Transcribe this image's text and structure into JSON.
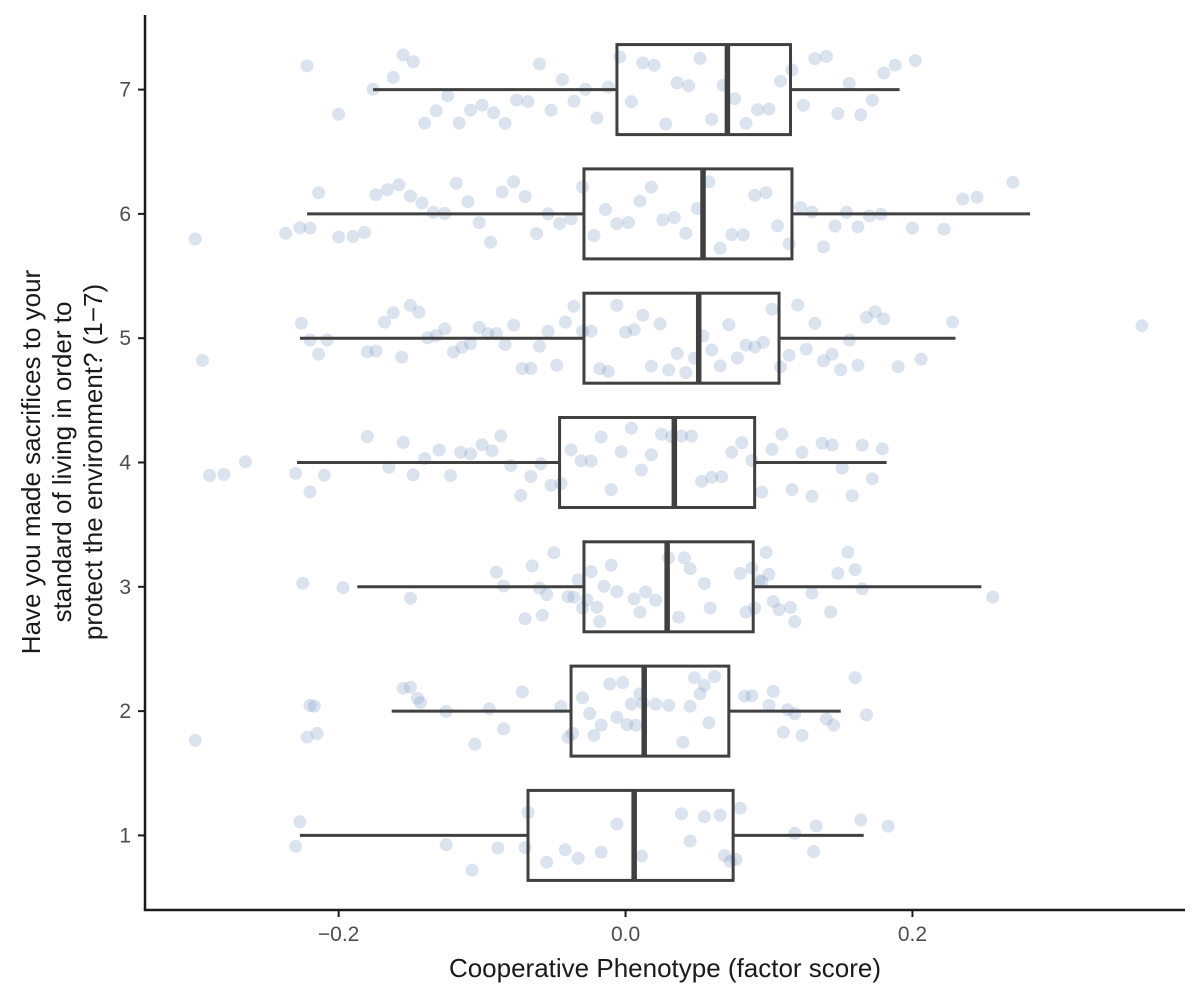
{
  "chart_data": {
    "type": "box",
    "xlabel": "Cooperative Phenotype (factor score)",
    "ylabel_lines": [
      "Have you made sacrifices to your",
      "standard of living in order to",
      "protect the environment? (1−7)"
    ],
    "x_ticks": [
      -0.2,
      0.0,
      0.2
    ],
    "x_tick_labels": [
      "−0.2",
      "0.0",
      "0.2"
    ],
    "y_categories": [
      "1",
      "2",
      "3",
      "4",
      "5",
      "6",
      "7"
    ],
    "xlim": [
      -0.335,
      0.39
    ],
    "ylim": [
      0.4,
      7.6
    ],
    "grid": false,
    "point_color": "#7f9cc7",
    "box_color": "#404040",
    "boxes": [
      {
        "category": "1",
        "whisker_low": -0.227,
        "q1": -0.068,
        "median": 0.006,
        "q3": 0.075,
        "whisker_high": 0.166
      },
      {
        "category": "2",
        "whisker_low": -0.163,
        "q1": -0.038,
        "median": 0.013,
        "q3": 0.072,
        "whisker_high": 0.15
      },
      {
        "category": "3",
        "whisker_low": -0.187,
        "q1": -0.029,
        "median": 0.029,
        "q3": 0.089,
        "whisker_high": 0.248
      },
      {
        "category": "4",
        "whisker_low": -0.229,
        "q1": -0.046,
        "median": 0.034,
        "q3": 0.09,
        "whisker_high": 0.182
      },
      {
        "category": "5",
        "whisker_low": -0.227,
        "q1": -0.029,
        "median": 0.051,
        "q3": 0.107,
        "whisker_high": 0.23
      },
      {
        "category": "6",
        "whisker_low": -0.222,
        "q1": -0.029,
        "median": 0.054,
        "q3": 0.116,
        "whisker_high": 0.282
      },
      {
        "category": "7",
        "whisker_low": -0.176,
        "q1": -0.006,
        "median": 0.071,
        "q3": 0.115,
        "whisker_high": 0.191
      }
    ],
    "points": [
      {
        "category": "1",
        "x": [
          -0.23,
          -0.227,
          -0.125,
          -0.107,
          -0.089,
          -0.07,
          -0.068,
          -0.055,
          -0.042,
          -0.033,
          -0.017,
          -0.006,
          0.011,
          0.039,
          0.045,
          0.055,
          0.066,
          0.069,
          0.073,
          0.077,
          0.08,
          0.118,
          0.131,
          0.133,
          0.164,
          0.183
        ]
      },
      {
        "category": "2",
        "x": [
          -0.3,
          -0.222,
          -0.22,
          -0.217,
          -0.215,
          -0.155,
          -0.15,
          -0.145,
          -0.143,
          -0.125,
          -0.105,
          -0.095,
          -0.085,
          -0.072,
          -0.045,
          -0.04,
          -0.037,
          -0.03,
          -0.025,
          -0.022,
          -0.017,
          -0.011,
          -0.006,
          -0.002,
          0.001,
          0.004,
          0.007,
          0.01,
          0.012,
          0.021,
          0.03,
          0.04,
          0.045,
          0.048,
          0.052,
          0.055,
          0.058,
          0.062,
          0.083,
          0.088,
          0.1,
          0.103,
          0.11,
          0.113,
          0.118,
          0.123,
          0.14,
          0.145,
          0.16,
          0.168
        ]
      },
      {
        "category": "3",
        "x": [
          -0.225,
          -0.197,
          -0.15,
          -0.09,
          -0.085,
          -0.07,
          -0.065,
          -0.06,
          -0.058,
          -0.055,
          -0.05,
          -0.04,
          -0.036,
          -0.033,
          -0.03,
          -0.027,
          -0.024,
          -0.02,
          -0.018,
          -0.015,
          -0.01,
          -0.006,
          0.006,
          0.01,
          0.014,
          0.021,
          0.03,
          0.037,
          0.041,
          0.045,
          0.055,
          0.059,
          0.08,
          0.084,
          0.088,
          0.09,
          0.093,
          0.095,
          0.098,
          0.1,
          0.103,
          0.107,
          0.115,
          0.118,
          0.13,
          0.143,
          0.148,
          0.155,
          0.16,
          0.165,
          0.256
        ]
      },
      {
        "category": "4",
        "x": [
          -0.29,
          -0.28,
          -0.265,
          -0.23,
          -0.22,
          -0.21,
          -0.18,
          -0.165,
          -0.155,
          -0.148,
          -0.14,
          -0.13,
          -0.122,
          -0.115,
          -0.108,
          -0.1,
          -0.093,
          -0.087,
          -0.08,
          -0.073,
          -0.066,
          -0.059,
          -0.052,
          -0.045,
          -0.038,
          -0.031,
          -0.024,
          -0.017,
          -0.01,
          -0.003,
          0.004,
          0.011,
          0.018,
          0.025,
          0.032,
          0.039,
          0.046,
          0.053,
          0.06,
          0.067,
          0.074,
          0.081,
          0.088,
          0.095,
          0.102,
          0.109,
          0.116,
          0.123,
          0.13,
          0.137,
          0.144,
          0.151,
          0.158,
          0.165,
          0.172,
          0.179
        ]
      },
      {
        "category": "5",
        "x": [
          -0.295,
          -0.226,
          -0.22,
          -0.214,
          -0.208,
          -0.18,
          -0.174,
          -0.168,
          -0.162,
          -0.156,
          -0.15,
          -0.144,
          -0.138,
          -0.132,
          -0.126,
          -0.12,
          -0.114,
          -0.108,
          -0.102,
          -0.096,
          -0.09,
          -0.084,
          -0.078,
          -0.072,
          -0.066,
          -0.06,
          -0.054,
          -0.048,
          -0.042,
          -0.036,
          -0.03,
          -0.024,
          -0.018,
          -0.012,
          -0.006,
          0.0,
          0.006,
          0.012,
          0.018,
          0.024,
          0.03,
          0.036,
          0.042,
          0.048,
          0.054,
          0.06,
          0.066,
          0.072,
          0.078,
          0.084,
          0.09,
          0.096,
          0.102,
          0.108,
          0.114,
          0.12,
          0.126,
          0.132,
          0.138,
          0.144,
          0.15,
          0.156,
          0.162,
          0.168,
          0.174,
          0.18,
          0.19,
          0.206,
          0.228,
          0.36
        ]
      },
      {
        "category": "6",
        "x": [
          -0.3,
          -0.237,
          -0.227,
          -0.22,
          -0.214,
          -0.2,
          -0.19,
          -0.182,
          -0.174,
          -0.166,
          -0.158,
          -0.15,
          -0.142,
          -0.134,
          -0.126,
          -0.118,
          -0.11,
          -0.102,
          -0.094,
          -0.086,
          -0.078,
          -0.07,
          -0.062,
          -0.054,
          -0.046,
          -0.038,
          -0.03,
          -0.022,
          -0.014,
          -0.006,
          0.002,
          0.01,
          0.018,
          0.026,
          0.034,
          0.042,
          0.05,
          0.058,
          0.066,
          0.074,
          0.082,
          0.09,
          0.098,
          0.106,
          0.114,
          0.122,
          0.13,
          0.138,
          0.146,
          0.154,
          0.162,
          0.17,
          0.178,
          0.2,
          0.222,
          0.235,
          0.245,
          0.27
        ]
      },
      {
        "category": "7",
        "x": [
          -0.222,
          -0.2,
          -0.176,
          -0.162,
          -0.155,
          -0.148,
          -0.14,
          -0.132,
          -0.124,
          -0.116,
          -0.108,
          -0.1,
          -0.092,
          -0.084,
          -0.076,
          -0.068,
          -0.06,
          -0.052,
          -0.044,
          -0.036,
          -0.028,
          -0.02,
          -0.012,
          -0.004,
          0.004,
          0.012,
          0.02,
          0.028,
          0.036,
          0.044,
          0.052,
          0.06,
          0.068,
          0.076,
          0.084,
          0.092,
          0.1,
          0.108,
          0.116,
          0.124,
          0.132,
          0.14,
          0.148,
          0.156,
          0.164,
          0.172,
          0.18,
          0.188,
          0.202
        ]
      }
    ]
  }
}
